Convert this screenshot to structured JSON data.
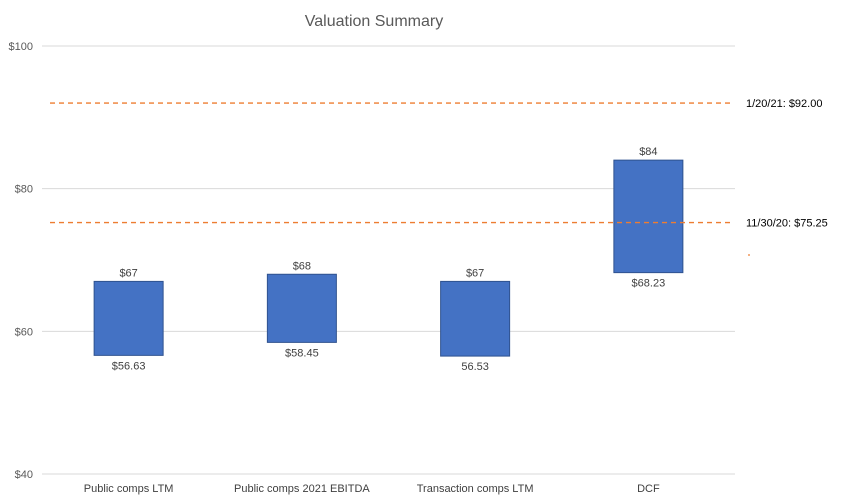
{
  "chart_data": {
    "type": "floating-bar",
    "title": "Valuation Summary",
    "xlabel": "",
    "ylabel": "",
    "ylim": [
      40,
      100
    ],
    "yticks": [
      40,
      60,
      80,
      100
    ],
    "ytick_labels": [
      "$40",
      "$60",
      "$80",
      "$100"
    ],
    "grid": true,
    "categories": [
      "Public comps LTM",
      "Public comps 2021 EBITDA",
      "Transaction comps LTM",
      "DCF"
    ],
    "low": [
      56.63,
      58.45,
      56.53,
      68.23
    ],
    "high": [
      67,
      68,
      67,
      84
    ],
    "low_labels": [
      "$56.63",
      "$58.45",
      "56.53",
      "$68.23"
    ],
    "high_labels": [
      "$67",
      "$68",
      "$67",
      "$84"
    ],
    "bar_color": "#4472C4",
    "reference_lines": [
      {
        "value": 92.0,
        "label": "1/20/21: $92.00",
        "color": "#ED7D31",
        "style": "dashed"
      },
      {
        "value": 75.25,
        "label": "11/30/20: $75.25",
        "color": "#ED7D31",
        "style": "dashed"
      }
    ]
  }
}
